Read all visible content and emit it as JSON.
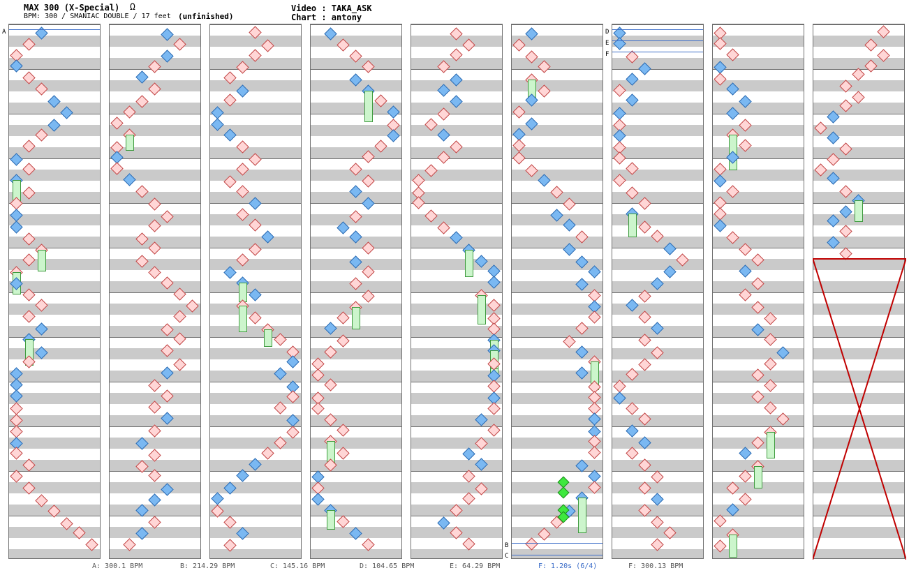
{
  "header": {
    "title": "MAX 300 (X-Special)",
    "omega": "Ω",
    "bpm_info": "BPM: 300 / SMANIAC DOUBLE / 17 feet",
    "status": "(unfinished)",
    "video": "Video : TAKA_ASK",
    "chart": "Chart : antony"
  },
  "markers": [
    "A",
    "B",
    "C",
    "D",
    "E",
    "F"
  ],
  "footer": [
    "A: 300.1 BPM",
    "B: 214.29 BPM",
    "C: 145.16 BPM",
    "D: 104.65 BPM",
    "E: 64.29 BPM",
    "F: 1.20s (6/4)",
    "F: 300.13 BPM"
  ],
  "colors": {
    "red_arrow": "#ffd6d6",
    "blue_arrow": "#7ab8f2",
    "freeze": "#ccf5cc",
    "shock": "#3ee83e",
    "bpm_line": "#3a6cc8",
    "cross": "#c00000"
  }
}
